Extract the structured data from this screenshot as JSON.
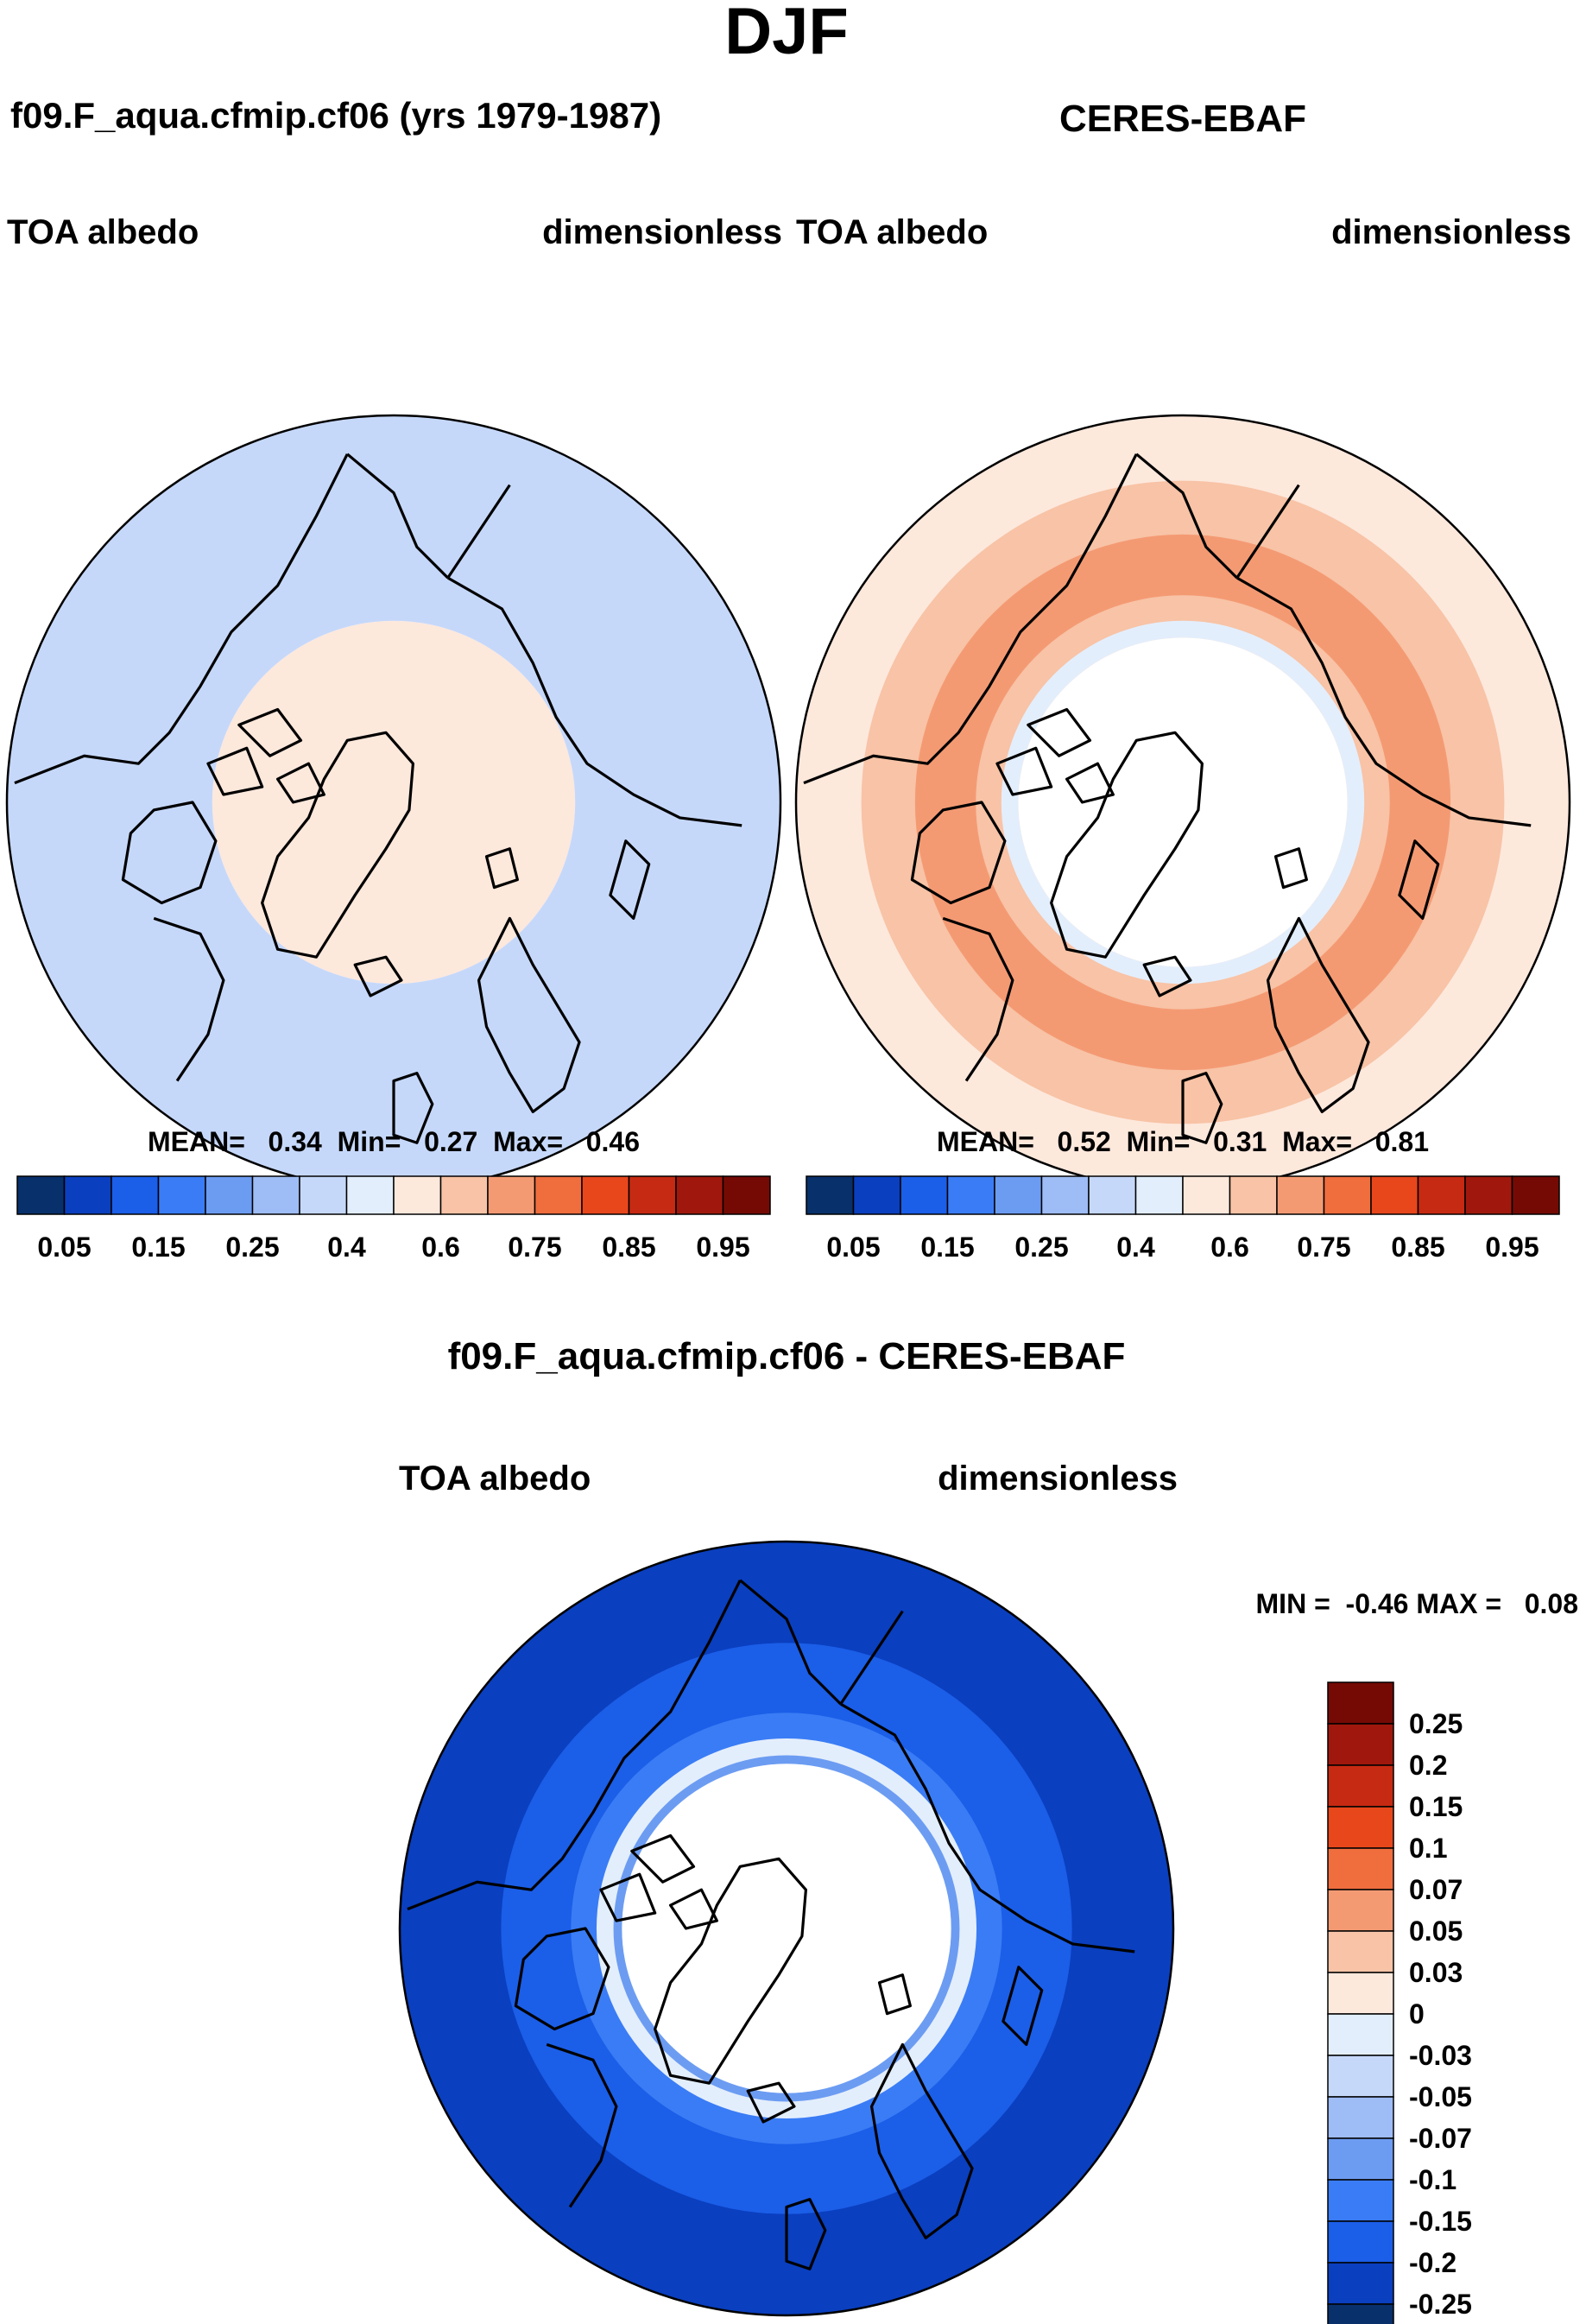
{
  "season": "DJF",
  "chart_data": [
    {
      "type": "heatmap",
      "projection": "north-polar-stereographic",
      "title": "f09.F_aqua.cfmip.cf06 (yrs 1979-1987)",
      "left_label": "TOA albedo",
      "right_label": "dimensionless",
      "stats_label": "MEAN=   0.34  Min=   0.27  Max=   0.46",
      "stats": {
        "mean": 0.34,
        "min": 0.27,
        "max": 0.46
      },
      "field_rings": [
        {
          "lat": 45,
          "value": 0.3
        },
        {
          "lat": 55,
          "value": 0.34
        },
        {
          "lat": 68,
          "value": 0.38
        },
        {
          "lat": 90,
          "value": 0.42
        }
      ],
      "colorbar": {
        "orientation": "horizontal",
        "levels": [
          0.05,
          0.1,
          0.15,
          0.2,
          0.25,
          0.3,
          0.35,
          0.4,
          0.5,
          0.6,
          0.7,
          0.75,
          0.8,
          0.85,
          0.9,
          0.95
        ],
        "tick_labels": [
          "0.05",
          "0.15",
          "0.25",
          "0.4",
          "0.6",
          "0.75",
          "0.85",
          "0.95"
        ],
        "colors": [
          "#08306b",
          "#0a3fbf",
          "#1b5ee8",
          "#3a7cf5",
          "#6c9cf2",
          "#9ebcf5",
          "#c6d8fa",
          "#e3eefc",
          "#fde8dc",
          "#f8c3a6",
          "#f49a73",
          "#f06d3e",
          "#e8471c",
          "#c72a12",
          "#a0180d",
          "#750a05"
        ]
      }
    },
    {
      "type": "heatmap",
      "projection": "north-polar-stereographic",
      "title": "CERES-EBAF",
      "left_label": "TOA albedo",
      "right_label": "dimensionless",
      "stats_label": "MEAN=   0.52  Min=   0.31  Max=   0.81",
      "stats": {
        "mean": 0.52,
        "min": 0.31,
        "max": 0.81
      },
      "field_rings": [
        {
          "lat": 45,
          "value": 0.42
        },
        {
          "lat": 52,
          "value": 0.55
        },
        {
          "lat": 58,
          "value": 0.62
        },
        {
          "lat": 65,
          "value": 0.55
        },
        {
          "lat": 68,
          "value": 0.38
        },
        {
          "lat": 70,
          "value": 0.42
        },
        {
          "lat": 90,
          "value": null
        }
      ],
      "colorbar": {
        "orientation": "horizontal",
        "levels": [
          0.05,
          0.1,
          0.15,
          0.2,
          0.25,
          0.3,
          0.35,
          0.4,
          0.5,
          0.6,
          0.7,
          0.75,
          0.8,
          0.85,
          0.9,
          0.95
        ],
        "tick_labels": [
          "0.05",
          "0.15",
          "0.25",
          "0.4",
          "0.6",
          "0.75",
          "0.85",
          "0.95"
        ],
        "colors": [
          "#08306b",
          "#0a3fbf",
          "#1b5ee8",
          "#3a7cf5",
          "#6c9cf2",
          "#9ebcf5",
          "#c6d8fa",
          "#e3eefc",
          "#fde8dc",
          "#f8c3a6",
          "#f49a73",
          "#f06d3e",
          "#e8471c",
          "#c72a12",
          "#a0180d",
          "#750a05"
        ]
      }
    },
    {
      "type": "heatmap",
      "projection": "north-polar-stereographic",
      "title": "f09.F_aqua.cfmip.cf06 - CERES-EBAF",
      "left_label": "TOA albedo",
      "right_label": "dimensionless",
      "stats_label": "MIN =  -0.46 MAX =   0.08",
      "stats": {
        "min": -0.46,
        "max": 0.08
      },
      "field_rings": [
        {
          "lat": 45,
          "value": -0.25
        },
        {
          "lat": 56,
          "value": -0.2
        },
        {
          "lat": 64,
          "value": -0.15
        },
        {
          "lat": 67,
          "value": -0.03
        },
        {
          "lat": 69,
          "value": -0.1
        },
        {
          "lat": 70,
          "value": -0.02
        },
        {
          "lat": 90,
          "value": null
        }
      ],
      "colorbar": {
        "orientation": "vertical",
        "tick_labels": [
          "0.25",
          "0.2",
          "0.15",
          "0.1",
          "0.07",
          "0.05",
          "0.03",
          "0",
          "-0.03",
          "-0.05",
          "-0.07",
          "-0.1",
          "-0.15",
          "-0.2",
          "-0.25"
        ],
        "colors": [
          "#750a05",
          "#a0180d",
          "#c72a12",
          "#e8471c",
          "#f06d3e",
          "#f49a73",
          "#f8c3a6",
          "#fde8dc",
          "#e3eefc",
          "#c6d8fa",
          "#9ebcf5",
          "#6c9cf2",
          "#3a7cf5",
          "#1b5ee8",
          "#0a3fbf",
          "#08306b"
        ]
      }
    }
  ]
}
